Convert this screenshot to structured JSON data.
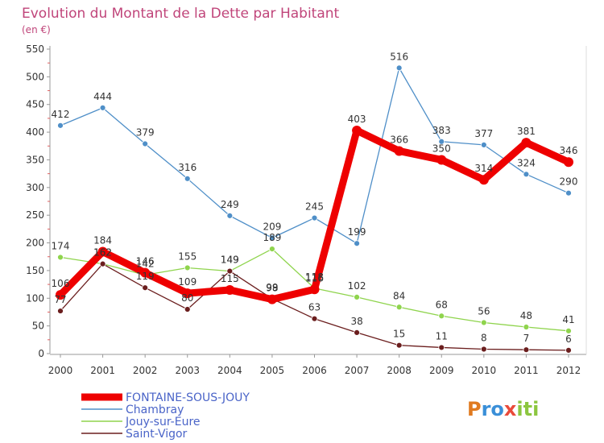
{
  "title": "Evolution du Montant de la Dette par Habitant",
  "subtitle": "(en €)",
  "logo": "Proxiti",
  "chart_data": {
    "type": "line",
    "x": [
      "2000",
      "2001",
      "2002",
      "2003",
      "2004",
      "2005",
      "2006",
      "2007",
      "2008",
      "2009",
      "2010",
      "2011",
      "2012"
    ],
    "ylim": [
      0,
      550
    ],
    "yticks": [
      0,
      50,
      100,
      150,
      200,
      250,
      300,
      350,
      400,
      450,
      500,
      550
    ],
    "grid": false,
    "legend_position": "bottom-left",
    "series": [
      {
        "name": "Chambray",
        "color": "#4f8fc8",
        "values": [
          412,
          444,
          379,
          316,
          249,
          209,
          245,
          199,
          516,
          383,
          377,
          324,
          290
        ]
      },
      {
        "name": "Jouy-sur-Eure",
        "color": "#8fd44d",
        "values": [
          174,
          162,
          142,
          155,
          149,
          189,
          118,
          102,
          84,
          68,
          56,
          48,
          41
        ]
      },
      {
        "name": "Saint-Vigor",
        "color": "#6b1e1e",
        "values": [
          77,
          162,
          119,
          80,
          149,
          99,
          63,
          38,
          15,
          11,
          8,
          7,
          6
        ]
      },
      {
        "name": "FONTAINE-SOUS-JOUY",
        "color": "#ee0000",
        "values": [
          106,
          184,
          146,
          109,
          115,
          98,
          116,
          403,
          366,
          350,
          314,
          381,
          346
        ]
      }
    ],
    "legend_order": [
      3,
      0,
      1,
      2
    ]
  }
}
